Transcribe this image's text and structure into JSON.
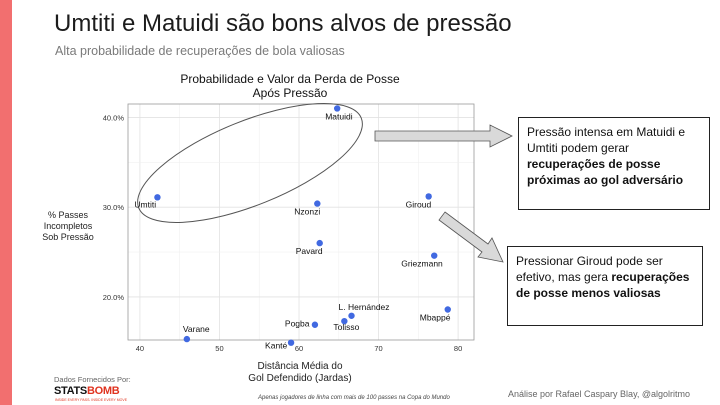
{
  "slide": {
    "title": "Umtiti e Matuidi são bons alvos de pressão",
    "subtitle": "Alta probabilidade de recuperações de bola valiosas",
    "accent_color": "#f26f6f"
  },
  "chart_data": {
    "type": "scatter",
    "title_line1": "Probabilidade e Valor da Perda de Posse",
    "title_line2": "Após Pressão",
    "xlabel_line1": "Distância Média do",
    "xlabel_line2": "Gol Defendido (Jardas)",
    "ylabel_line1": "% Passes",
    "ylabel_line2": "Incompletos",
    "ylabel_line3": "Sob Pressão",
    "xlim": [
      38.5,
      82
    ],
    "ylim": [
      15.2,
      41.5
    ],
    "x_ticks": [
      40,
      50,
      60,
      70,
      80
    ],
    "x_tick_labels": [
      "40",
      "50",
      "60",
      "70",
      "80"
    ],
    "y_ticks": [
      20,
      30,
      40
    ],
    "y_tick_labels": [
      "20.0%",
      "30.0%",
      "40.0%"
    ],
    "grid": true,
    "point_color": "#4169e1",
    "points": [
      {
        "label": "Matuidi",
        "x": 64.8,
        "y": 41.0
      },
      {
        "label": "Umtiti",
        "x": 42.2,
        "y": 31.1
      },
      {
        "label": "Nzonzi",
        "x": 62.3,
        "y": 30.4
      },
      {
        "label": "Giroud",
        "x": 76.3,
        "y": 31.2
      },
      {
        "label": "Pavard",
        "x": 62.6,
        "y": 26.0
      },
      {
        "label": "Griezmann",
        "x": 77.0,
        "y": 24.6
      },
      {
        "label": "L. Hernández",
        "x": 66.6,
        "y": 17.9
      },
      {
        "label": "Mbappé",
        "x": 78.7,
        "y": 18.6
      },
      {
        "label": "Pogba",
        "x": 62.0,
        "y": 16.9
      },
      {
        "label": "Tolisso",
        "x": 65.7,
        "y": 17.3
      },
      {
        "label": "Varane",
        "x": 45.9,
        "y": 15.3
      },
      {
        "label": "Kanté",
        "x": 59.0,
        "y": 14.9
      }
    ],
    "footnote": "Apenas jogadores de linha com mais de 100 passes na Copa do Mundo"
  },
  "callouts": [
    {
      "text_plain": "Pressão intensa em Matuidi e Umtiti podem gerar ",
      "text_bold": "recuperações de posse próximas ao gol adversário"
    },
    {
      "text_plain": "Pressionar Giroud pode ser efetivo, mas gera ",
      "text_bold": "recuperações de posse menos valiosas"
    }
  ],
  "footer": {
    "provider_label": "Dados Fornecidos Por:",
    "logo_part1": "STATS",
    "logo_part2": "BOMB",
    "logo_tagline": "INSIDE EVERY PASS. INSIDE EVERY MOVE",
    "credit": "Análise por Rafael Caspary Blay, @algolritmo"
  }
}
